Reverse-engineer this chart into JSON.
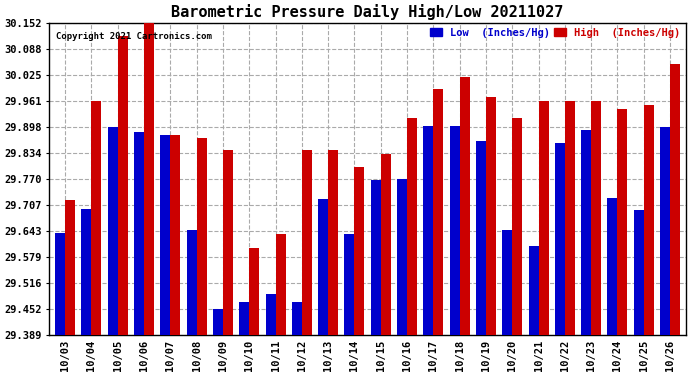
{
  "title": "Barometric Pressure Daily High/Low 20211027",
  "copyright": "Copyright 2021 Cartronics.com",
  "legend_low": "Low  (Inches/Hg)",
  "legend_high": "High  (Inches/Hg)",
  "categories": [
    "10/03",
    "10/04",
    "10/05",
    "10/06",
    "10/07",
    "10/08",
    "10/09",
    "10/10",
    "10/11",
    "10/12",
    "10/13",
    "10/14",
    "10/15",
    "10/16",
    "10/17",
    "10/18",
    "10/19",
    "10/20",
    "10/21",
    "10/22",
    "10/23",
    "10/24",
    "10/25",
    "10/26"
  ],
  "low_values": [
    29.637,
    29.697,
    29.897,
    29.885,
    29.878,
    29.644,
    29.452,
    29.47,
    29.488,
    29.468,
    29.72,
    29.635,
    29.767,
    29.77,
    29.9,
    29.9,
    29.862,
    29.645,
    29.607,
    29.858,
    29.89,
    29.723,
    29.695,
    29.898
  ],
  "high_values": [
    29.718,
    29.96,
    30.12,
    30.152,
    29.878,
    29.87,
    29.84,
    29.6,
    29.635,
    29.84,
    29.84,
    29.8,
    29.83,
    29.918,
    29.99,
    30.02,
    29.97,
    29.92,
    29.96,
    29.96,
    29.96,
    29.94,
    29.95,
    30.05
  ],
  "ymin": 29.389,
  "ymax": 30.152,
  "yticks": [
    29.389,
    29.452,
    29.516,
    29.579,
    29.643,
    29.707,
    29.77,
    29.834,
    29.898,
    29.961,
    30.025,
    30.088,
    30.152
  ],
  "bar_color_low": "#0000cc",
  "bar_color_high": "#cc0000",
  "bg_color": "#ffffff",
  "grid_color": "#aaaaaa",
  "title_fontsize": 11,
  "bar_width": 0.38
}
